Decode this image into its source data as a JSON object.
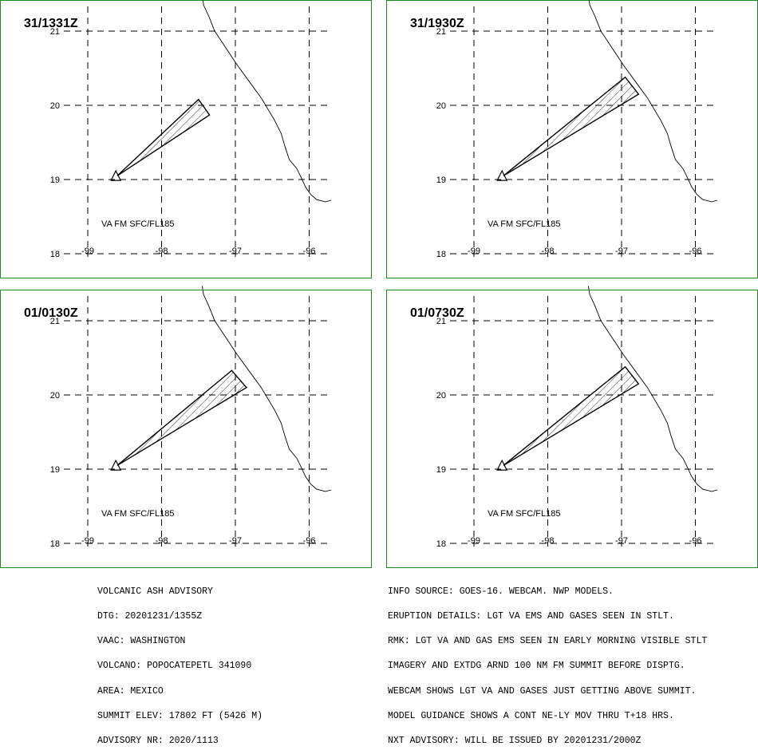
{
  "panels": [
    {
      "time": "31/1331Z",
      "level": "VA FM SFC/FL185",
      "plume_lonlat": [
        [
          -98.6,
          19.05
        ],
        [
          -97.5,
          20.08
        ],
        [
          -97.35,
          19.87
        ]
      ]
    },
    {
      "time": "31/1930Z",
      "level": "VA FM SFC/FL185",
      "plume_lonlat": [
        [
          -98.6,
          19.05
        ],
        [
          -96.95,
          20.38
        ],
        [
          -96.77,
          20.15
        ]
      ]
    },
    {
      "time": "01/0130Z",
      "level": "VA FM SFC/FL185",
      "plume_lonlat": [
        [
          -98.6,
          19.05
        ],
        [
          -97.05,
          20.33
        ],
        [
          -96.85,
          20.1
        ]
      ]
    },
    {
      "time": "01/0730Z",
      "level": "VA FM SFC/FL185",
      "plume_lonlat": [
        [
          -98.6,
          19.05
        ],
        [
          -96.95,
          20.38
        ],
        [
          -96.77,
          20.15
        ]
      ]
    }
  ],
  "axes": {
    "lat_ticks": [
      "21",
      "20",
      "19",
      "18"
    ],
    "lon_ticks": [
      "-99",
      "-98",
      "-97",
      "-96"
    ],
    "lat_values": [
      21,
      20,
      19,
      18
    ],
    "lon_values": [
      -99,
      -98,
      -97,
      -96
    ]
  },
  "volcano_lonlat": [
    -98.62,
    19.02
  ],
  "coastline_lonlat": [
    [
      -97.45,
      21.47
    ],
    [
      -97.43,
      21.35
    ],
    [
      -97.36,
      21.2
    ],
    [
      -97.28,
      21.0
    ],
    [
      -97.18,
      20.85
    ],
    [
      -97.08,
      20.7
    ],
    [
      -96.98,
      20.55
    ],
    [
      -96.87,
      20.4
    ],
    [
      -96.76,
      20.25
    ],
    [
      -96.65,
      20.1
    ],
    [
      -96.56,
      19.95
    ],
    [
      -96.47,
      19.8
    ],
    [
      -96.38,
      19.62
    ],
    [
      -96.33,
      19.45
    ],
    [
      -96.27,
      19.27
    ],
    [
      -96.17,
      19.15
    ],
    [
      -96.12,
      19.05
    ],
    [
      -96.05,
      18.9
    ],
    [
      -95.98,
      18.8
    ],
    [
      -95.9,
      18.73
    ],
    [
      -95.78,
      18.7
    ],
    [
      -95.7,
      18.72
    ]
  ],
  "colors": {
    "frame": "#1a8a1a",
    "ink": "#000000"
  },
  "advisory_left": [
    "VOLCANIC ASH ADVISORY",
    "DTG: 20201231/1355Z",
    "VAAC: WASHINGTON",
    "VOLCANO: POPOCATEPETL 341090",
    "AREA: MEXICO",
    "SUMMIT ELEV: 17802 FT (5426 M)",
    "ADVISORY NR: 2020/1113"
  ],
  "advisory_right": [
    "INFO SOURCE: GOES-16. WEBCAM. NWP MODELS.",
    "ERUPTION DETAILS: LGT VA EMS AND GASES SEEN IN STLT.",
    "RMK: LGT VA AND GAS EMS SEEN IN EARLY MORNING VISIBLE STLT",
    "IMAGERY AND EXTDG ARND 100 NM FM SUMMIT BEFORE DISPTG.",
    "WEBCAM SHOWS LGT VA AND GASES JUST GETTING ABOVE SUMMIT.",
    "MODEL GUIDANCE SHOWS A CONT NE-LY MOV THRU T+18 HRS.",
    "NXT ADVISORY: WILL BE ISSUED BY 20201231/2000Z"
  ]
}
